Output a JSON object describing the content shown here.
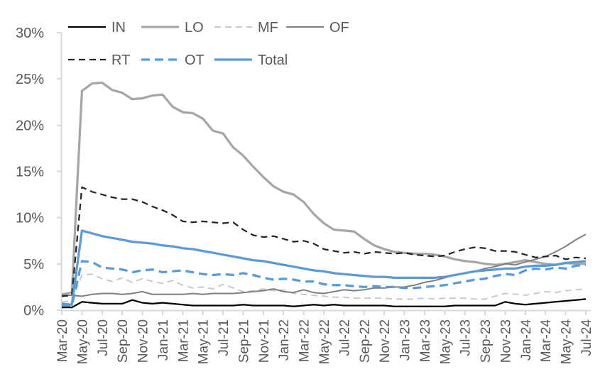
{
  "chart_data": {
    "type": "line",
    "title": "",
    "xlabel": "",
    "ylabel": "",
    "ylim": [
      0,
      30
    ],
    "grid": false,
    "legend_position": "top",
    "y_tick_labels": [
      "0%",
      "5%",
      "10%",
      "15%",
      "20%",
      "25%",
      "30%"
    ],
    "y_tick_values": [
      0,
      5,
      10,
      15,
      20,
      25,
      30
    ],
    "x_tick_every": 2,
    "x": [
      "Mar-20",
      "Apr-20",
      "May-20",
      "Jun-20",
      "Jul-20",
      "Aug-20",
      "Sep-20",
      "Oct-20",
      "Nov-20",
      "Dec-20",
      "Jan-21",
      "Feb-21",
      "Mar-21",
      "Apr-21",
      "May-21",
      "Jun-21",
      "Jul-21",
      "Aug-21",
      "Sep-21",
      "Oct-21",
      "Nov-21",
      "Dec-21",
      "Jan-22",
      "Feb-22",
      "Mar-22",
      "Apr-22",
      "May-22",
      "Jun-22",
      "Jul-22",
      "Aug-22",
      "Sep-22",
      "Oct-22",
      "Nov-22",
      "Dec-22",
      "Jan-23",
      "Feb-23",
      "Mar-23",
      "Apr-23",
      "May-23",
      "Jun-23",
      "Jul-23",
      "Aug-23",
      "Sep-23",
      "Oct-23",
      "Nov-23",
      "Dec-23",
      "Jan-24",
      "Feb-24",
      "Mar-24",
      "Apr-24",
      "May-24",
      "Jun-24",
      "Jul-24"
    ],
    "colors": {
      "black": "#000000",
      "light_gray": "#a6a6a6",
      "pale_gray": "#c9c9c9",
      "mid_gray": "#7f7f7f",
      "dark": "#262626",
      "blue": "#5b9bd5",
      "axis": "#d9d9d9",
      "text": "#595959"
    },
    "series": [
      {
        "name": "IN",
        "color": "#000000",
        "style": "solid",
        "width": 2.25,
        "values": [
          0.3,
          0.3,
          0.9,
          0.8,
          0.7,
          0.7,
          0.7,
          1.1,
          0.8,
          0.7,
          0.8,
          0.7,
          0.6,
          0.5,
          0.5,
          0.5,
          0.5,
          0.5,
          0.6,
          0.5,
          0.5,
          0.5,
          0.5,
          0.4,
          0.5,
          0.6,
          0.5,
          0.6,
          0.5,
          0.5,
          0.5,
          0.5,
          0.5,
          0.4,
          0.4,
          0.4,
          0.4,
          0.4,
          0.4,
          0.5,
          0.5,
          0.5,
          0.5,
          0.5,
          0.9,
          0.7,
          0.6,
          0.7,
          0.8,
          0.9,
          1.0,
          1.1,
          1.2
        ]
      },
      {
        "name": "LO",
        "color": "#a6a6a6",
        "style": "solid",
        "width": 3.25,
        "values": [
          1.7,
          1.9,
          23.7,
          24.5,
          24.6,
          23.8,
          23.5,
          22.8,
          22.9,
          23.2,
          23.3,
          22.0,
          21.4,
          21.3,
          20.7,
          19.4,
          19.1,
          17.6,
          16.7,
          15.5,
          14.4,
          13.4,
          12.8,
          12.5,
          11.7,
          10.4,
          9.4,
          8.7,
          8.6,
          8.5,
          7.7,
          7.0,
          6.6,
          6.3,
          6.2,
          6.1,
          6.1,
          6.0,
          5.8,
          5.5,
          5.3,
          5.2,
          5.0,
          4.9,
          5.0,
          5.2,
          5.4,
          5.2,
          5.0,
          4.9,
          5.1,
          5.0,
          5.0
        ]
      },
      {
        "name": "MF",
        "color": "#c9c9c9",
        "style": "dashed",
        "width": 2,
        "values": [
          0.9,
          1.0,
          3.8,
          3.9,
          3.4,
          3.1,
          3.5,
          3.0,
          3.4,
          3.1,
          2.9,
          3.2,
          2.7,
          2.4,
          2.5,
          2.3,
          2.8,
          2.4,
          2.0,
          2.1,
          2.3,
          2.1,
          2.2,
          1.8,
          1.7,
          1.6,
          1.5,
          1.4,
          1.4,
          1.3,
          1.3,
          1.3,
          1.3,
          1.2,
          1.2,
          1.2,
          1.3,
          1.2,
          1.3,
          1.3,
          1.3,
          1.2,
          1.2,
          1.5,
          1.8,
          1.7,
          1.6,
          1.8,
          2.0,
          1.9,
          2.1,
          2.2,
          2.3
        ]
      },
      {
        "name": "OF",
        "color": "#7f7f7f",
        "style": "solid",
        "width": 2,
        "values": [
          1.6,
          1.6,
          1.5,
          1.7,
          1.8,
          1.8,
          1.7,
          1.8,
          2.0,
          1.7,
          1.7,
          1.7,
          1.7,
          1.8,
          1.7,
          1.8,
          1.8,
          1.8,
          1.9,
          2.0,
          2.1,
          2.3,
          2.0,
          1.9,
          2.2,
          1.9,
          1.8,
          2.0,
          2.2,
          2.1,
          2.2,
          2.4,
          2.4,
          2.5,
          2.5,
          2.7,
          3.0,
          3.2,
          3.5,
          3.8,
          4.0,
          4.2,
          4.5,
          4.7,
          5.0,
          4.9,
          5.2,
          5.5,
          5.8,
          6.3,
          6.9,
          7.6,
          8.2
        ]
      },
      {
        "name": "RT",
        "color": "#262626",
        "style": "dashed",
        "width": 2.25,
        "values": [
          1.5,
          1.6,
          13.3,
          12.8,
          12.5,
          12.2,
          12.0,
          12.0,
          11.7,
          11.2,
          10.8,
          10.3,
          9.6,
          9.5,
          9.6,
          9.5,
          9.4,
          9.5,
          8.7,
          8.1,
          7.9,
          8.0,
          7.7,
          7.4,
          7.5,
          7.2,
          6.6,
          6.4,
          6.2,
          6.3,
          6.1,
          6.3,
          6.2,
          6.1,
          6.2,
          6.0,
          5.9,
          5.8,
          5.9,
          6.3,
          6.6,
          6.8,
          6.7,
          6.4,
          6.4,
          6.3,
          6.0,
          5.7,
          5.8,
          5.9,
          5.5,
          5.7,
          5.6
        ]
      },
      {
        "name": "OT",
        "color": "#5b9bd5",
        "style": "dashed",
        "width": 3.25,
        "values": [
          0.5,
          0.5,
          5.3,
          5.2,
          4.6,
          4.5,
          4.4,
          4.1,
          4.3,
          4.4,
          4.1,
          4.2,
          4.3,
          4.1,
          3.9,
          3.8,
          3.9,
          3.8,
          4.0,
          3.8,
          3.5,
          3.3,
          3.4,
          3.3,
          3.1,
          3.1,
          2.8,
          2.7,
          2.7,
          2.6,
          2.5,
          2.6,
          2.5,
          2.5,
          2.4,
          2.4,
          2.5,
          2.6,
          2.7,
          2.9,
          3.1,
          3.3,
          3.4,
          3.7,
          3.9,
          3.8,
          4.3,
          4.5,
          4.4,
          4.6,
          4.5,
          4.8,
          4.9
        ]
      },
      {
        "name": "Total",
        "color": "#5b9bd5",
        "style": "solid",
        "width": 3.25,
        "values": [
          0.7,
          0.6,
          8.6,
          8.3,
          8.0,
          7.8,
          7.6,
          7.4,
          7.3,
          7.2,
          7.0,
          6.9,
          6.7,
          6.6,
          6.4,
          6.2,
          6.0,
          5.8,
          5.6,
          5.4,
          5.3,
          5.1,
          4.9,
          4.7,
          4.5,
          4.3,
          4.2,
          4.0,
          3.9,
          3.8,
          3.7,
          3.6,
          3.6,
          3.5,
          3.5,
          3.5,
          3.5,
          3.5,
          3.6,
          3.8,
          4.0,
          4.2,
          4.3,
          4.4,
          4.5,
          4.5,
          4.7,
          4.8,
          4.8,
          4.9,
          5.1,
          5.2,
          5.3
        ]
      }
    ],
    "legend_rows": [
      [
        "IN",
        "LO",
        "MF",
        "OF"
      ],
      [
        "RT",
        "OT",
        "Total"
      ]
    ]
  }
}
